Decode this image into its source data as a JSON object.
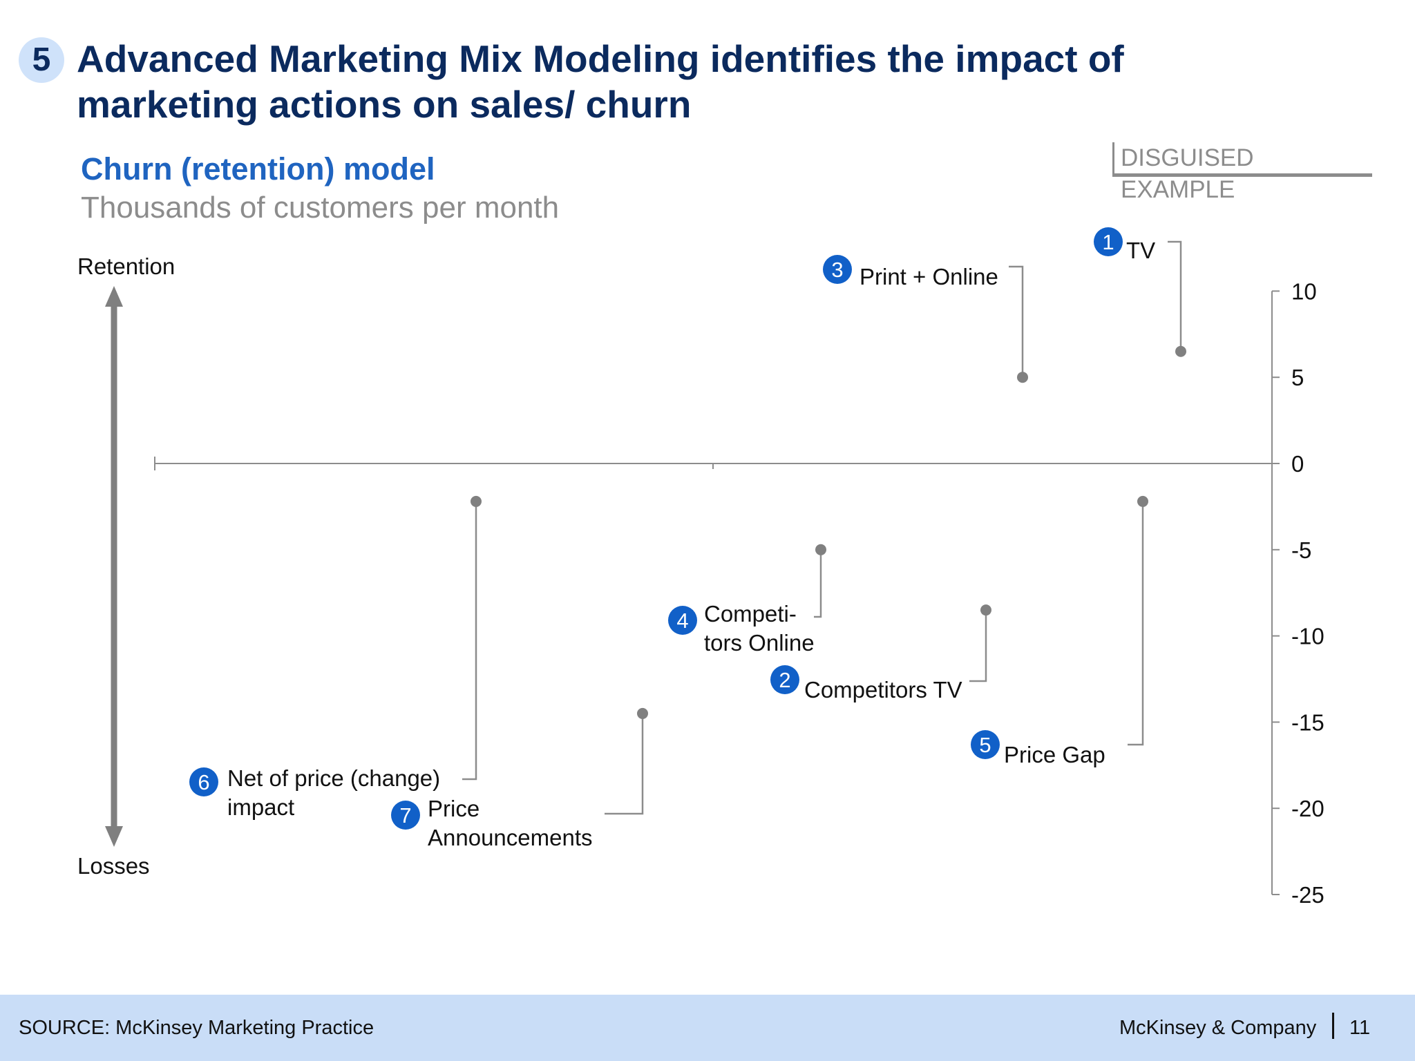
{
  "header": {
    "section_number": "5",
    "title": "Advanced Marketing Mix Modeling identifies the impact of marketing actions on sales/ churn",
    "disguised_label": "DISGUISED EXAMPLE"
  },
  "chart_data": {
    "type": "scatter",
    "title": "Churn (retention) model",
    "subtitle": "Thousands of customers per month",
    "top_label": "Retention",
    "bottom_label": "Losses",
    "ylim": [
      -25,
      10
    ],
    "yticks": [
      10,
      5,
      0,
      -5,
      -10,
      -15,
      -20,
      -25
    ],
    "grid": false,
    "colors": {
      "badge": "#1160c8",
      "marker": "#808080",
      "axis": "#8c8c8c",
      "arrow": "#7f7f7f"
    },
    "points": [
      {
        "number": "1",
        "label": "TV",
        "value": 6.5
      },
      {
        "number": "2",
        "label": "Competitors TV",
        "value": -8.5
      },
      {
        "number": "3",
        "label": "Print + Online",
        "value": 5
      },
      {
        "number": "4",
        "label": "Competi- tors Online",
        "value": -5
      },
      {
        "number": "5",
        "label": "Price Gap",
        "value": -2.2
      },
      {
        "number": "6",
        "label": "Net of price (change) impact",
        "value": -2.2
      },
      {
        "number": "7",
        "label": "Price Announcements",
        "value": -14.5
      }
    ]
  },
  "footer": {
    "source": "SOURCE: McKinsey Marketing Practice",
    "company": "McKinsey & Company",
    "page": "11"
  }
}
